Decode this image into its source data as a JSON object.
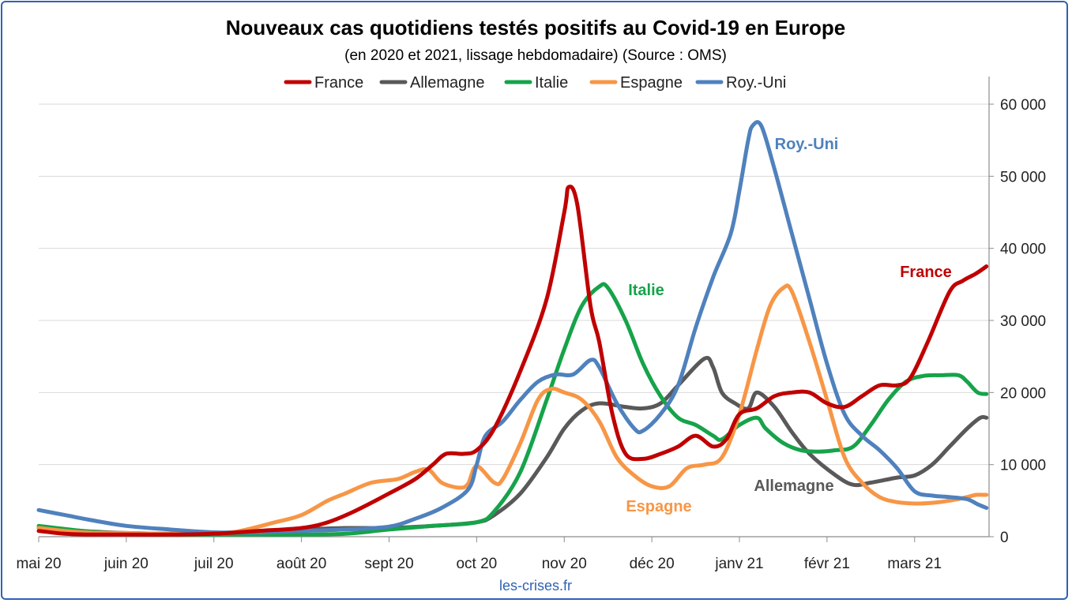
{
  "chart_data": {
    "type": "line",
    "title": "Nouveaux cas quotidiens testés positifs au Covid-19 en Europe",
    "subtitle": "(en 2020 et 2021, lissage hebdomadaire) (Source : OMS)",
    "source_note": "les-crises.fr",
    "x_tick_labels": [
      "mai 20",
      "juin 20",
      "juil 20",
      "août 20",
      "sept 20",
      "oct 20",
      "nov 20",
      "déc 20",
      "janv 21",
      "févr 21",
      "mars 21"
    ],
    "y_tick_labels": [
      "0",
      "10 000",
      "20 000",
      "30 000",
      "40 000",
      "50 000",
      "60 000"
    ],
    "xlim": [
      0,
      10.85
    ],
    "ylim": [
      0,
      60000
    ],
    "y_axis_side": "right",
    "grid": true,
    "legend_position": "top",
    "series": [
      {
        "name": "France",
        "color": "#c00000",
        "annotation": "France",
        "points": [
          [
            0,
            800
          ],
          [
            0.3,
            400
          ],
          [
            0.6,
            300
          ],
          [
            1,
            300
          ],
          [
            1.5,
            300
          ],
          [
            2,
            400
          ],
          [
            2.5,
            800
          ],
          [
            3,
            1200
          ],
          [
            3.3,
            2000
          ],
          [
            3.6,
            3500
          ],
          [
            4,
            6000
          ],
          [
            4.3,
            8000
          ],
          [
            4.5,
            10000
          ],
          [
            4.65,
            11500
          ],
          [
            4.85,
            11500
          ],
          [
            5,
            12000
          ],
          [
            5.2,
            15000
          ],
          [
            5.5,
            23000
          ],
          [
            5.8,
            33000
          ],
          [
            6,
            45000
          ],
          [
            6.05,
            48500
          ],
          [
            6.15,
            46000
          ],
          [
            6.3,
            32000
          ],
          [
            6.4,
            27000
          ],
          [
            6.55,
            17000
          ],
          [
            6.7,
            11500
          ],
          [
            6.9,
            10800
          ],
          [
            7.1,
            11500
          ],
          [
            7.3,
            12500
          ],
          [
            7.5,
            14000
          ],
          [
            7.7,
            12500
          ],
          [
            7.85,
            13500
          ],
          [
            8,
            17000
          ],
          [
            8.2,
            17800
          ],
          [
            8.4,
            19500
          ],
          [
            8.6,
            20000
          ],
          [
            8.8,
            20000
          ],
          [
            9,
            18500
          ],
          [
            9.2,
            18000
          ],
          [
            9.4,
            19500
          ],
          [
            9.6,
            21000
          ],
          [
            9.8,
            21000
          ],
          [
            9.95,
            22000
          ],
          [
            10.15,
            27000
          ],
          [
            10.4,
            34000
          ],
          [
            10.55,
            35500
          ],
          [
            10.7,
            36500
          ],
          [
            10.82,
            37500
          ]
        ]
      },
      {
        "name": "Allemagne",
        "color": "#595959",
        "annotation": "Allemagne",
        "points": [
          [
            0,
            1200
          ],
          [
            0.5,
            800
          ],
          [
            1,
            500
          ],
          [
            1.5,
            400
          ],
          [
            2,
            500
          ],
          [
            2.5,
            700
          ],
          [
            3,
            1000
          ],
          [
            3.5,
            1200
          ],
          [
            4,
            1200
          ],
          [
            4.5,
            1500
          ],
          [
            5,
            2000
          ],
          [
            5.2,
            3000
          ],
          [
            5.5,
            6000
          ],
          [
            5.8,
            11000
          ],
          [
            6,
            15000
          ],
          [
            6.2,
            17500
          ],
          [
            6.4,
            18500
          ],
          [
            6.7,
            18000
          ],
          [
            6.9,
            17800
          ],
          [
            7.1,
            18500
          ],
          [
            7.3,
            21000
          ],
          [
            7.6,
            24700
          ],
          [
            7.7,
            23500
          ],
          [
            7.8,
            20000
          ],
          [
            7.95,
            18500
          ],
          [
            8.1,
            17800
          ],
          [
            8.2,
            20000
          ],
          [
            8.4,
            18000
          ],
          [
            8.6,
            14500
          ],
          [
            8.8,
            11500
          ],
          [
            9.1,
            8500
          ],
          [
            9.3,
            7200
          ],
          [
            9.5,
            7500
          ],
          [
            9.8,
            8200
          ],
          [
            10,
            8500
          ],
          [
            10.2,
            10000
          ],
          [
            10.4,
            12500
          ],
          [
            10.6,
            15000
          ],
          [
            10.75,
            16500
          ],
          [
            10.82,
            16500
          ]
        ]
      },
      {
        "name": "Italie",
        "color": "#16a34a",
        "annotation": "Italie",
        "points": [
          [
            0,
            1500
          ],
          [
            0.5,
            800
          ],
          [
            1,
            400
          ],
          [
            1.5,
            300
          ],
          [
            2,
            300
          ],
          [
            2.5,
            300
          ],
          [
            3,
            300
          ],
          [
            3.5,
            400
          ],
          [
            4,
            1000
          ],
          [
            4.5,
            1500
          ],
          [
            5,
            2000
          ],
          [
            5.2,
            3500
          ],
          [
            5.5,
            9000
          ],
          [
            5.8,
            19000
          ],
          [
            6,
            26000
          ],
          [
            6.2,
            32000
          ],
          [
            6.4,
            34700
          ],
          [
            6.5,
            34500
          ],
          [
            6.7,
            30000
          ],
          [
            6.9,
            24000
          ],
          [
            7.1,
            19500
          ],
          [
            7.3,
            16500
          ],
          [
            7.5,
            15500
          ],
          [
            7.7,
            14000
          ],
          [
            7.8,
            13500
          ],
          [
            8,
            15500
          ],
          [
            8.2,
            16500
          ],
          [
            8.3,
            15000
          ],
          [
            8.5,
            13000
          ],
          [
            8.7,
            12000
          ],
          [
            8.9,
            11800
          ],
          [
            9.1,
            12000
          ],
          [
            9.3,
            12500
          ],
          [
            9.5,
            15500
          ],
          [
            9.7,
            19000
          ],
          [
            9.9,
            21500
          ],
          [
            10.1,
            22300
          ],
          [
            10.3,
            22400
          ],
          [
            10.5,
            22400
          ],
          [
            10.6,
            21500
          ],
          [
            10.72,
            20000
          ],
          [
            10.82,
            19800
          ]
        ]
      },
      {
        "name": "Espagne",
        "color": "#f79646",
        "annotation": "Espagne",
        "points": [
          [
            0,
            1200
          ],
          [
            0.5,
            600
          ],
          [
            1,
            500
          ],
          [
            1.5,
            400
          ],
          [
            2,
            400
          ],
          [
            2.3,
            800
          ],
          [
            2.7,
            2000
          ],
          [
            3,
            3000
          ],
          [
            3.3,
            5000
          ],
          [
            3.5,
            6000
          ],
          [
            3.8,
            7500
          ],
          [
            4.1,
            8000
          ],
          [
            4.3,
            9000
          ],
          [
            4.45,
            9300
          ],
          [
            4.6,
            7500
          ],
          [
            4.8,
            6800
          ],
          [
            4.9,
            7300
          ],
          [
            5,
            9800
          ],
          [
            5.2,
            7500
          ],
          [
            5.3,
            8000
          ],
          [
            5.5,
            13000
          ],
          [
            5.7,
            19000
          ],
          [
            5.85,
            20500
          ],
          [
            6,
            20000
          ],
          [
            6.2,
            19000
          ],
          [
            6.4,
            16000
          ],
          [
            6.6,
            11000
          ],
          [
            6.8,
            8500
          ],
          [
            7,
            7000
          ],
          [
            7.2,
            7000
          ],
          [
            7.4,
            9500
          ],
          [
            7.6,
            10000
          ],
          [
            7.8,
            11000
          ],
          [
            8,
            17000
          ],
          [
            8.2,
            26000
          ],
          [
            8.35,
            32000
          ],
          [
            8.5,
            34500
          ],
          [
            8.6,
            34000
          ],
          [
            8.8,
            27000
          ],
          [
            9,
            19000
          ],
          [
            9.2,
            11000
          ],
          [
            9.4,
            7500
          ],
          [
            9.6,
            5500
          ],
          [
            9.8,
            4800
          ],
          [
            10,
            4600
          ],
          [
            10.2,
            4700
          ],
          [
            10.4,
            5000
          ],
          [
            10.6,
            5500
          ],
          [
            10.7,
            5800
          ],
          [
            10.82,
            5800
          ]
        ]
      },
      {
        "name": "Roy.-Uni",
        "color": "#4f81bd",
        "annotation": "Roy.-Uni",
        "points": [
          [
            0,
            3700
          ],
          [
            0.3,
            3000
          ],
          [
            0.6,
            2300
          ],
          [
            1,
            1500
          ],
          [
            1.5,
            1000
          ],
          [
            2,
            600
          ],
          [
            2.5,
            600
          ],
          [
            3,
            800
          ],
          [
            3.5,
            1000
          ],
          [
            4,
            1400
          ],
          [
            4.3,
            2500
          ],
          [
            4.6,
            4000
          ],
          [
            4.9,
            6500
          ],
          [
            5,
            10000
          ],
          [
            5.1,
            14000
          ],
          [
            5.3,
            16000
          ],
          [
            5.5,
            19000
          ],
          [
            5.7,
            21500
          ],
          [
            5.9,
            22500
          ],
          [
            6.1,
            22500
          ],
          [
            6.3,
            24500
          ],
          [
            6.4,
            23500
          ],
          [
            6.6,
            18500
          ],
          [
            6.8,
            15000
          ],
          [
            6.9,
            14700
          ],
          [
            7.1,
            17000
          ],
          [
            7.3,
            21000
          ],
          [
            7.5,
            29000
          ],
          [
            7.7,
            36000
          ],
          [
            7.9,
            42000
          ],
          [
            8,
            48000
          ],
          [
            8.1,
            55000
          ],
          [
            8.15,
            57000
          ],
          [
            8.25,
            57000
          ],
          [
            8.4,
            51000
          ],
          [
            8.6,
            42000
          ],
          [
            8.8,
            33000
          ],
          [
            9,
            24000
          ],
          [
            9.2,
            17000
          ],
          [
            9.4,
            14000
          ],
          [
            9.6,
            12000
          ],
          [
            9.8,
            9500
          ],
          [
            10,
            6300
          ],
          [
            10.2,
            5700
          ],
          [
            10.4,
            5500
          ],
          [
            10.6,
            5200
          ],
          [
            10.72,
            4500
          ],
          [
            10.82,
            4000
          ]
        ]
      }
    ]
  }
}
